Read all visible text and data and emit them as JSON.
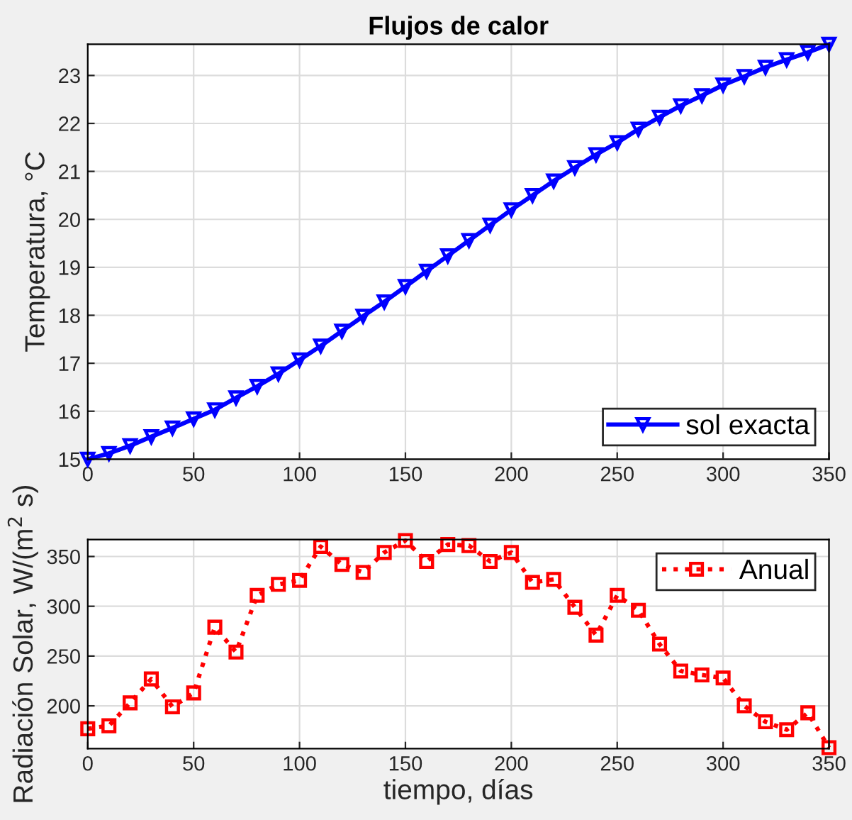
{
  "chart_data": [
    {
      "type": "line",
      "title": "Flujos de calor",
      "ylabel": "Temperatura, °C",
      "x": [
        0,
        10,
        20,
        30,
        40,
        50,
        60,
        70,
        80,
        90,
        100,
        110,
        120,
        130,
        140,
        150,
        160,
        170,
        180,
        190,
        200,
        210,
        220,
        230,
        240,
        250,
        260,
        270,
        280,
        290,
        300,
        310,
        320,
        330,
        340,
        350
      ],
      "series": [
        {
          "name": "sol exacta",
          "color": "#0000ff",
          "marker": "triangle",
          "line_style": "solid",
          "values": [
            15.0,
            15.12,
            15.28,
            15.47,
            15.65,
            15.84,
            16.03,
            16.28,
            16.52,
            16.78,
            17.07,
            17.36,
            17.67,
            17.98,
            18.28,
            18.6,
            18.92,
            19.24,
            19.56,
            19.88,
            20.2,
            20.5,
            20.8,
            21.08,
            21.35,
            21.6,
            21.88,
            22.13,
            22.37,
            22.58,
            22.8,
            22.98,
            23.17,
            23.33,
            23.48,
            23.65
          ]
        }
      ],
      "xlim": [
        0,
        350
      ],
      "xticks": [
        0,
        50,
        100,
        150,
        200,
        250,
        300,
        350
      ],
      "ylim": [
        15,
        23.65
      ],
      "yticks": [
        15,
        16,
        17,
        18,
        19,
        20,
        21,
        22,
        23
      ],
      "grid": true,
      "legend": "bottom right"
    },
    {
      "type": "line",
      "xlabel": "tiempo, días",
      "ylabel": "Radiación Solar, W/(m$^{2}$ s)",
      "x": [
        0,
        10,
        20,
        30,
        40,
        50,
        60,
        70,
        80,
        90,
        100,
        110,
        120,
        130,
        140,
        150,
        160,
        170,
        180,
        190,
        200,
        210,
        220,
        230,
        240,
        250,
        260,
        270,
        280,
        290,
        300,
        310,
        320,
        330,
        340,
        350
      ],
      "series": [
        {
          "name": "Anual",
          "color": "#ff0000",
          "marker": "square",
          "line_style": "dotted",
          "values": [
            177,
            180,
            203,
            227,
            199,
            213,
            279,
            254,
            311,
            322,
            326,
            360,
            342,
            334,
            354,
            366,
            345,
            362,
            361,
            345,
            354,
            324,
            327,
            299,
            271,
            311,
            296,
            262,
            235,
            231,
            228,
            200,
            184,
            176,
            193,
            158
          ]
        }
      ],
      "xlim": [
        0,
        350
      ],
      "xticks": [
        0,
        50,
        100,
        150,
        200,
        250,
        300,
        350
      ],
      "ylim": [
        157,
        367
      ],
      "yticks": [
        200,
        250,
        300,
        350
      ],
      "grid": true,
      "legend": "top right"
    }
  ]
}
